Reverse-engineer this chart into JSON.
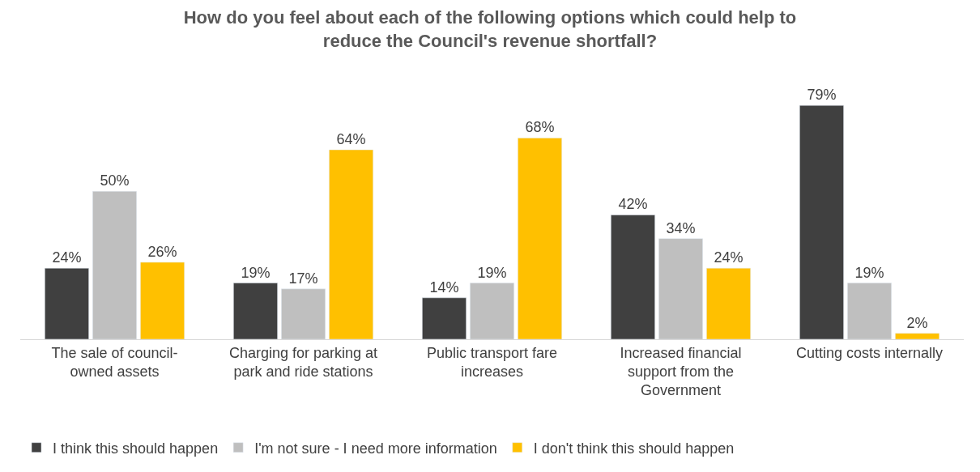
{
  "chart_data": {
    "type": "bar",
    "title": "How do you feel about each of the following options which could help to reduce the Council's revenue shortfall?",
    "categories": [
      "The sale of council-owned assets",
      "Charging for parking at park and ride stations",
      "Public transport fare increases",
      "Increased financial support from the Government",
      "Cutting costs internally"
    ],
    "series": [
      {
        "name": "I think this should happen",
        "color": "#404040",
        "values": [
          24,
          19,
          14,
          42,
          79
        ],
        "value_labels": [
          "24%",
          "19%",
          "14%",
          "42%",
          "79%"
        ]
      },
      {
        "name": "I'm not sure - I need more information",
        "color": "#bfbfbf",
        "values": [
          50,
          17,
          19,
          34,
          19
        ],
        "value_labels": [
          "50%",
          "17%",
          "19%",
          "34%",
          "19%"
        ]
      },
      {
        "name": "I don't think this should happen",
        "color": "#ffc000",
        "values": [
          26,
          64,
          68,
          24,
          2
        ],
        "value_labels": [
          "26%",
          "64%",
          "68%",
          "24%",
          "2%"
        ]
      }
    ],
    "legend": "bottom left"
  }
}
